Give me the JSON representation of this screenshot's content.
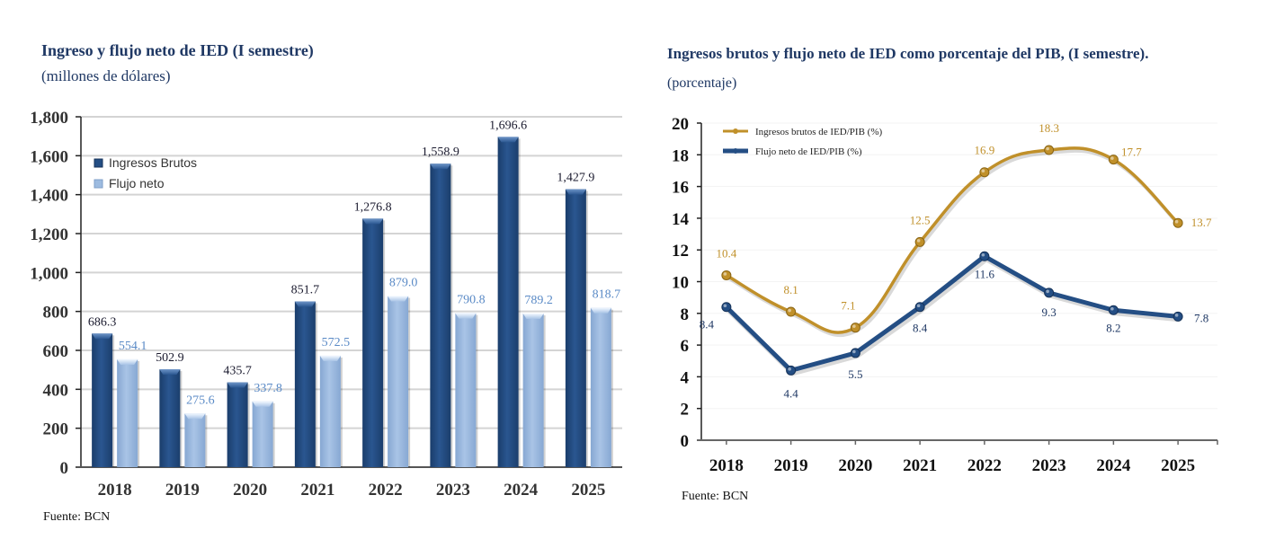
{
  "left": {
    "title": "Ingreso y flujo neto de IED (I semestre)",
    "subtitle": "(millones de dólares)",
    "source": "Fuente: BCN"
  },
  "right": {
    "title": "Ingresos brutos y flujo neto de IED como porcentaje del PIB, (I semestre).",
    "subtitle": "(porcentaje)",
    "source": "Fuente: BCN"
  },
  "chart_data": [
    {
      "type": "bar",
      "title": "Ingreso y flujo neto de IED (I semestre)",
      "subtitle": "(millones de dólares)",
      "xlabel": "",
      "ylabel": "",
      "categories": [
        "2018",
        "2019",
        "2020",
        "2021",
        "2022",
        "2023",
        "2024",
        "2025"
      ],
      "series": [
        {
          "name": "Ingresos Brutos",
          "color": "#244e84",
          "label_color": "#1a1a2e",
          "values": [
            686.3,
            502.9,
            435.7,
            851.7,
            1276.8,
            1558.9,
            1696.6,
            1427.9
          ],
          "labels": [
            "686.3",
            "502.9",
            "435.7",
            "851.7",
            "1,276.8",
            "1,558.9",
            "1,696.6",
            "1,427.9"
          ]
        },
        {
          "name": "Flujo neto",
          "color": "#9dbbe0",
          "label_color": "#5a8ac6",
          "values": [
            554.1,
            275.6,
            337.8,
            572.5,
            879.0,
            790.8,
            789.2,
            818.7
          ],
          "labels": [
            "554.1",
            "275.6",
            "337.8",
            "572.5",
            "879.0",
            "790.8",
            "789.2",
            "818.7"
          ]
        }
      ],
      "ylim": [
        0,
        1800
      ],
      "yticks": [
        0,
        200,
        400,
        600,
        800,
        1000,
        1200,
        1400,
        1600,
        1800
      ],
      "ytick_labels": [
        "0",
        "200",
        "400",
        "600",
        "800",
        "1,000",
        "1,200",
        "1,400",
        "1,600",
        "1,800"
      ],
      "grid": true,
      "legend": "top-left"
    },
    {
      "type": "line",
      "title": "Ingresos brutos y flujo neto de IED como porcentaje del PIB, (I semestre).",
      "subtitle": "(porcentaje)",
      "xlabel": "",
      "ylabel": "",
      "x": [
        "2018",
        "2019",
        "2020",
        "2021",
        "2022",
        "2023",
        "2024",
        "2025"
      ],
      "series": [
        {
          "name": "Ingresos brutos de IED/PIB (%)",
          "color": "#c0902a",
          "smooth": true,
          "values": [
            10.4,
            8.1,
            7.1,
            12.5,
            16.9,
            18.3,
            17.7,
            13.7
          ],
          "labels": [
            "10.4",
            "8.1",
            "7.1",
            "12.5",
            "16.9",
            "18.3",
            "17.7",
            "13.7"
          ]
        },
        {
          "name": "Flujo neto de IED/PIB (%)",
          "color": "#244e84",
          "smooth": false,
          "values": [
            8.4,
            4.4,
            5.5,
            8.4,
            11.6,
            9.3,
            8.2,
            7.8
          ],
          "labels": [
            "8.4",
            "4.4",
            "5.5",
            "8.4",
            "11.6",
            "9.3",
            "8.2",
            "7.8"
          ]
        }
      ],
      "ylim": [
        0,
        20
      ],
      "yticks": [
        0,
        2,
        4,
        6,
        8,
        10,
        12,
        14,
        16,
        18,
        20
      ],
      "ytick_labels": [
        "0",
        "2",
        "4",
        "6",
        "8",
        "10",
        "12",
        "14",
        "16",
        "18",
        "20"
      ],
      "grid": true,
      "legend": "top-left"
    }
  ]
}
